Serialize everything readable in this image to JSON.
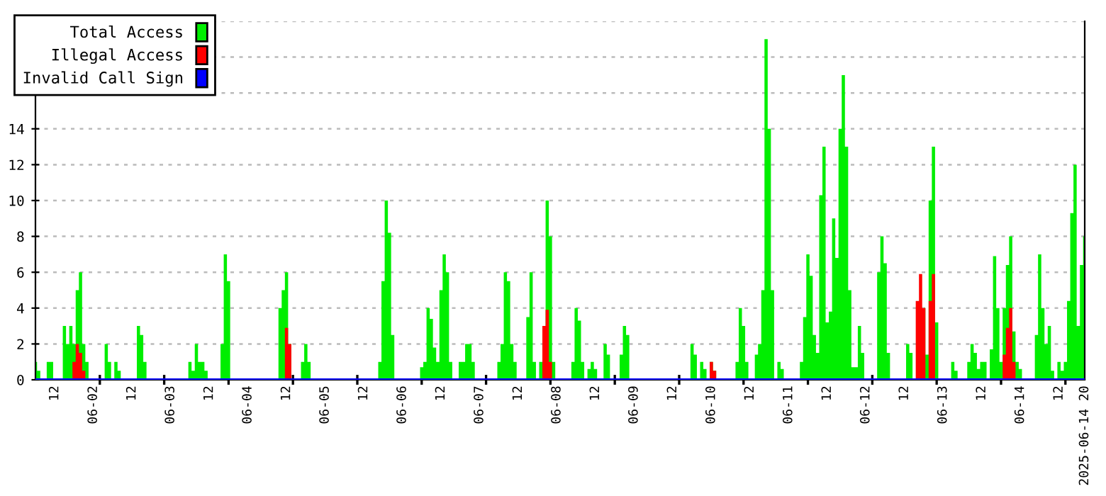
{
  "chart_data": {
    "type": "area",
    "xlim": [
      "2025-06-01T06:00",
      "2025-06-14T20:00"
    ],
    "ylim": [
      0,
      20
    ],
    "yticks": [
      0,
      2,
      4,
      6,
      8,
      10,
      12,
      14,
      {
        "value": 16,
        "label": null
      },
      {
        "value": 18,
        "label": null
      },
      {
        "value": 20,
        "label": null
      }
    ],
    "xticks": [
      {
        "value": "2025-06-01T12:00",
        "label": "12"
      },
      {
        "value": "2025-06-02T00:00",
        "label": "06-02"
      },
      {
        "value": "2025-06-02T12:00",
        "label": "12"
      },
      {
        "value": "2025-06-03T00:00",
        "label": "06-03"
      },
      {
        "value": "2025-06-03T12:00",
        "label": "12"
      },
      {
        "value": "2025-06-04T00:00",
        "label": "06-04"
      },
      {
        "value": "2025-06-04T12:00",
        "label": "12"
      },
      {
        "value": "2025-06-05T00:00",
        "label": "06-05"
      },
      {
        "value": "2025-06-05T12:00",
        "label": "12"
      },
      {
        "value": "2025-06-06T00:00",
        "label": "06-06"
      },
      {
        "value": "2025-06-06T12:00",
        "label": "12"
      },
      {
        "value": "2025-06-07T00:00",
        "label": "06-07"
      },
      {
        "value": "2025-06-07T12:00",
        "label": "12"
      },
      {
        "value": "2025-06-08T00:00",
        "label": "06-08"
      },
      {
        "value": "2025-06-08T12:00",
        "label": "12"
      },
      {
        "value": "2025-06-09T00:00",
        "label": "06-09"
      },
      {
        "value": "2025-06-09T12:00",
        "label": "12"
      },
      {
        "value": "2025-06-10T00:00",
        "label": "06-10"
      },
      {
        "value": "2025-06-10T12:00",
        "label": "12"
      },
      {
        "value": "2025-06-11T00:00",
        "label": "06-11"
      },
      {
        "value": "2025-06-11T12:00",
        "label": "12"
      },
      {
        "value": "2025-06-12T00:00",
        "label": "06-12"
      },
      {
        "value": "2025-06-12T12:00",
        "label": "12"
      },
      {
        "value": "2025-06-13T00:00",
        "label": "06-13"
      },
      {
        "value": "2025-06-13T12:00",
        "label": "12"
      },
      {
        "value": "2025-06-14T00:00",
        "label": "06-14"
      },
      {
        "value": "2025-06-14T12:00",
        "label": "12"
      },
      {
        "value": "2025-06-14T20:00",
        "label": "2025-06-14 20"
      },
      {
        "value": "2025-06-02T02:00",
        "label": null
      },
      {
        "value": "2025-06-02T22:00",
        "label": null
      },
      {
        "value": "2025-06-03T18:00",
        "label": null
      },
      {
        "value": "2025-06-04T14:00",
        "label": null
      },
      {
        "value": "2025-06-05T10:00",
        "label": null
      },
      {
        "value": "2025-06-06T06:00",
        "label": null
      },
      {
        "value": "2025-06-07T02:00",
        "label": null
      },
      {
        "value": "2025-06-07T22:00",
        "label": null
      },
      {
        "value": "2025-06-08T18:00",
        "label": null
      },
      {
        "value": "2025-06-09T14:00",
        "label": null
      },
      {
        "value": "2025-06-10T10:00",
        "label": null
      },
      {
        "value": "2025-06-11T06:00",
        "label": null
      },
      {
        "value": "2025-06-12T02:00",
        "label": null
      },
      {
        "value": "2025-06-12T22:00",
        "label": null
      },
      {
        "value": "2025-06-13T18:00",
        "label": null
      },
      {
        "value": "2025-06-14T14:00",
        "label": null
      }
    ],
    "grid": "y",
    "legend": "top left",
    "series": [
      {
        "name": "Total Access",
        "color": "#00ee00",
        "x": [
          "2025-06-01T06:00",
          "2025-06-01T07:00",
          "2025-06-01T08:00",
          "2025-06-01T09:00",
          "2025-06-01T10:00",
          "2025-06-01T11:00",
          "2025-06-01T12:00",
          "2025-06-01T14:00",
          "2025-06-01T15:00",
          "2025-06-01T16:00",
          "2025-06-01T17:00",
          "2025-06-01T18:00",
          "2025-06-01T19:00",
          "2025-06-01T20:00",
          "2025-06-01T21:00",
          "2025-06-01T22:00",
          "2025-06-01T23:00",
          "2025-06-02T03:00",
          "2025-06-02T04:00",
          "2025-06-02T05:00",
          "2025-06-02T06:00",
          "2025-06-02T07:00",
          "2025-06-02T08:00",
          "2025-06-02T09:00",
          "2025-06-02T13:00",
          "2025-06-02T14:00",
          "2025-06-02T15:00",
          "2025-06-02T16:00",
          "2025-06-02T17:00",
          "2025-06-03T05:00",
          "2025-06-03T06:00",
          "2025-06-03T07:00",
          "2025-06-03T08:00",
          "2025-06-03T09:00",
          "2025-06-03T10:00",
          "2025-06-03T11:00",
          "2025-06-03T12:00",
          "2025-06-03T15:00",
          "2025-06-03T16:00",
          "2025-06-03T17:00",
          "2025-06-03T18:00",
          "2025-06-03T19:00",
          "2025-06-04T09:00",
          "2025-06-04T10:00",
          "2025-06-04T11:00",
          "2025-06-04T12:00",
          "2025-06-04T13:00",
          "2025-06-04T14:00",
          "2025-06-04T16:00",
          "2025-06-04T17:00",
          "2025-06-04T18:00",
          "2025-06-04T19:00",
          "2025-06-04T20:00",
          "2025-06-05T16:00",
          "2025-06-05T17:00",
          "2025-06-05T18:00",
          "2025-06-05T19:00",
          "2025-06-05T20:00",
          "2025-06-05T21:00",
          "2025-06-05T22:00",
          "2025-06-06T05:00",
          "2025-06-06T06:00",
          "2025-06-06T07:00",
          "2025-06-06T08:00",
          "2025-06-06T09:00",
          "2025-06-06T10:00",
          "2025-06-06T11:00",
          "2025-06-06T12:00",
          "2025-06-06T13:00",
          "2025-06-06T14:00",
          "2025-06-06T15:00",
          "2025-06-06T16:00",
          "2025-06-06T17:00",
          "2025-06-06T18:00",
          "2025-06-06T19:00",
          "2025-06-06T20:00",
          "2025-06-06T21:00",
          "2025-06-06T22:00",
          "2025-06-06T23:00",
          "2025-06-07T05:00",
          "2025-06-07T06:00",
          "2025-06-07T07:00",
          "2025-06-07T08:00",
          "2025-06-07T09:00",
          "2025-06-07T10:00",
          "2025-06-07T11:00",
          "2025-06-07T12:00",
          "2025-06-07T14:00",
          "2025-06-07T15:00",
          "2025-06-07T16:00",
          "2025-06-07T17:00",
          "2025-06-07T18:00",
          "2025-06-07T19:00",
          "2025-06-07T20:00",
          "2025-06-07T21:00",
          "2025-06-07T22:00",
          "2025-06-07T23:00",
          "2025-06-08T00:00",
          "2025-06-08T04:00",
          "2025-06-08T05:00",
          "2025-06-08T06:00",
          "2025-06-08T07:00",
          "2025-06-08T08:00",
          "2025-06-08T09:00",
          "2025-06-08T10:00",
          "2025-06-08T11:00",
          "2025-06-08T12:00",
          "2025-06-08T13:00",
          "2025-06-08T14:00",
          "2025-06-08T15:00",
          "2025-06-08T16:00",
          "2025-06-08T17:00",
          "2025-06-08T19:00",
          "2025-06-08T20:00",
          "2025-06-08T21:00",
          "2025-06-08T22:00",
          "2025-06-08T23:00",
          "2025-06-09T17:00",
          "2025-06-09T18:00",
          "2025-06-09T19:00",
          "2025-06-09T20:00",
          "2025-06-09T21:00",
          "2025-06-09T22:00",
          "2025-06-09T23:00",
          "2025-06-10T00:00",
          "2025-06-10T01:00",
          "2025-06-10T02:00",
          "2025-06-10T07:00",
          "2025-06-10T08:00",
          "2025-06-10T09:00",
          "2025-06-10T10:00",
          "2025-06-10T11:00",
          "2025-06-10T12:00",
          "2025-06-10T13:00",
          "2025-06-10T14:00",
          "2025-06-10T15:00",
          "2025-06-10T16:00",
          "2025-06-10T17:00",
          "2025-06-10T18:00",
          "2025-06-10T19:00",
          "2025-06-10T20:00",
          "2025-06-10T21:00",
          "2025-06-10T22:00",
          "2025-06-10T23:00",
          "2025-06-11T03:00",
          "2025-06-11T04:00",
          "2025-06-11T05:00",
          "2025-06-11T06:00",
          "2025-06-11T07:00",
          "2025-06-11T08:00",
          "2025-06-11T09:00",
          "2025-06-11T10:00",
          "2025-06-11T11:00",
          "2025-06-11T12:00",
          "2025-06-11T13:00",
          "2025-06-11T14:00",
          "2025-06-11T15:00",
          "2025-06-11T16:00",
          "2025-06-11T17:00",
          "2025-06-11T18:00",
          "2025-06-11T19:00",
          "2025-06-11T20:00",
          "2025-06-11T21:00",
          "2025-06-11T22:00",
          "2025-06-11T23:00",
          "2025-06-12T00:00",
          "2025-06-12T03:00",
          "2025-06-12T04:00",
          "2025-06-12T05:00",
          "2025-06-12T06:00",
          "2025-06-12T07:00",
          "2025-06-12T08:00",
          "2025-06-12T12:00",
          "2025-06-12T13:00",
          "2025-06-12T14:00",
          "2025-06-12T15:00",
          "2025-06-12T16:00",
          "2025-06-12T17:00",
          "2025-06-12T18:00",
          "2025-06-12T19:00",
          "2025-06-12T20:00",
          "2025-06-12T21:00",
          "2025-06-12T22:00",
          "2025-06-12T23:00",
          "2025-06-13T02:00",
          "2025-06-13T03:00",
          "2025-06-13T04:00",
          "2025-06-13T05:00",
          "2025-06-13T07:00",
          "2025-06-13T08:00",
          "2025-06-13T09:00",
          "2025-06-13T10:00",
          "2025-06-13T11:00",
          "2025-06-13T12:00",
          "2025-06-13T13:00",
          "2025-06-13T14:00",
          "2025-06-13T15:00",
          "2025-06-13T16:00",
          "2025-06-13T17:00",
          "2025-06-13T18:00",
          "2025-06-13T19:00",
          "2025-06-13T20:00",
          "2025-06-13T21:00",
          "2025-06-13T22:00",
          "2025-06-13T23:00",
          "2025-06-14T00:00",
          "2025-06-14T01:00",
          "2025-06-14T04:00",
          "2025-06-14T05:00",
          "2025-06-14T06:00",
          "2025-06-14T07:00",
          "2025-06-14T08:00",
          "2025-06-14T09:00",
          "2025-06-14T10:00",
          "2025-06-14T11:00",
          "2025-06-14T12:00",
          "2025-06-14T13:00",
          "2025-06-14T14:00",
          "2025-06-14T15:00",
          "2025-06-14T16:00",
          "2025-06-14T17:00",
          "2025-06-14T18:00",
          "2025-06-14T19:00",
          "2025-06-14T20:00"
        ],
        "values": [
          1,
          0.5,
          0,
          0,
          1,
          1,
          0,
          0,
          3,
          2,
          3,
          2,
          5,
          6,
          2,
          1,
          0,
          0,
          2,
          1,
          0,
          1,
          0.5,
          0,
          0,
          3,
          2.5,
          1,
          0,
          0,
          1,
          0.5,
          2,
          1,
          1,
          0.5,
          0,
          0,
          2,
          7,
          5.5,
          0,
          0,
          4,
          5,
          6,
          2,
          0,
          0,
          1,
          2,
          1,
          0,
          0,
          1,
          5.5,
          10,
          8.2,
          2.5,
          0,
          0,
          0.7,
          1,
          4,
          3.4,
          1.8,
          1,
          5,
          7,
          6,
          1,
          0,
          0,
          1,
          1,
          2,
          2,
          1,
          0,
          0,
          1,
          2,
          6,
          5.5,
          2,
          1,
          0,
          0,
          3.5,
          6,
          1,
          0,
          1,
          3,
          10,
          8,
          1,
          0,
          0,
          1,
          4,
          3.3,
          1,
          0,
          0.6,
          1,
          0.6,
          0,
          0,
          2,
          1.4,
          0,
          0,
          1.4,
          3,
          2.5,
          0,
          0,
          2,
          1.4,
          0,
          1,
          0.6,
          0,
          1,
          0.5,
          0,
          0,
          1,
          4,
          3,
          1,
          0,
          0,
          1.4,
          2,
          5,
          19,
          14,
          5,
          0,
          1,
          0.6,
          0,
          0,
          1,
          3.5,
          7,
          5.8,
          2.5,
          1.5,
          10.3,
          13,
          3.2,
          3.8,
          9,
          6.8,
          14,
          17,
          13,
          5,
          0.7,
          0.7,
          3,
          1.5,
          0,
          0,
          6,
          8,
          6.5,
          1.5,
          0,
          0,
          2,
          1.5,
          0,
          null,
          null,
          4,
          1.4,
          10,
          13,
          3.2,
          0,
          0,
          1,
          0.5,
          0,
          0,
          1,
          2,
          1.5,
          0.6,
          1,
          1,
          0,
          1.7,
          6.9,
          4,
          1,
          4,
          6.4,
          8,
          2.7,
          1,
          0.6,
          0,
          0,
          2.5,
          7,
          4,
          2,
          3,
          0.5,
          0,
          1,
          0.5,
          1,
          4.4,
          9.3,
          12,
          3,
          6.4,
          8
        ]
      },
      {
        "name": "Illegal Access",
        "color": "#ff0000",
        "x": [
          "2025-06-01T17:00",
          "2025-06-01T18:00",
          "2025-06-01T19:00",
          "2025-06-01T20:00",
          "2025-06-01T21:00",
          "2025-06-01T22:00",
          "2025-06-04T11:00",
          "2025-06-04T12:00",
          "2025-06-04T13:00",
          "2025-06-04T14:00",
          "2025-06-07T19:00",
          "2025-06-07T20:00",
          "2025-06-07T21:00",
          "2025-06-07T22:00",
          "2025-06-07T23:00",
          "2025-06-09T23:00",
          "2025-06-10T00:00",
          "2025-06-10T01:00",
          "2025-06-10T02:00",
          "2025-06-12T15:00",
          "2025-06-12T16:00",
          "2025-06-12T17:00",
          "2025-06-12T18:00",
          "2025-06-12T19:00",
          "2025-06-12T20:00",
          "2025-06-12T21:00",
          "2025-06-12T22:00",
          "2025-06-13T18:00",
          "2025-06-13T19:00",
          "2025-06-13T20:00",
          "2025-06-13T21:00",
          "2025-06-13T22:00",
          "2025-06-13T23:00"
        ],
        "values": [
          0,
          1,
          2,
          1.5,
          0.5,
          0,
          0,
          2.9,
          2,
          0,
          0,
          3,
          3.9,
          1,
          0,
          0,
          1,
          0.5,
          0,
          0,
          4.4,
          5.9,
          4,
          0,
          4.4,
          5.9,
          0,
          0,
          1.4,
          2.9,
          4,
          1,
          0
        ]
      },
      {
        "name": "Invalid Call Sign",
        "color": "#0000ff",
        "type": "line",
        "x": [
          "2025-06-01T06:00",
          "2025-06-14T20:00"
        ],
        "values": [
          0,
          0
        ]
      }
    ]
  }
}
